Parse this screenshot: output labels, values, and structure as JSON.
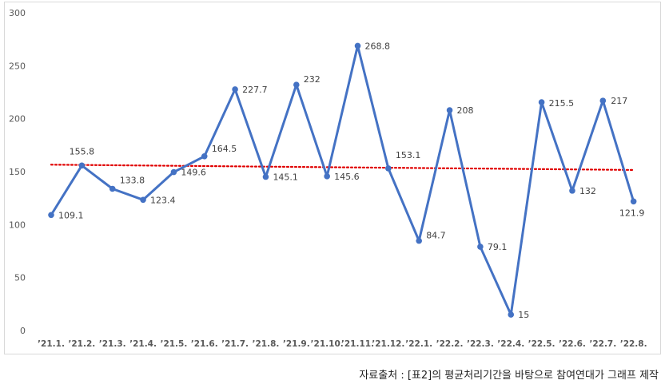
{
  "chart_data": {
    "type": "line",
    "categories": [
      "'21.1.",
      "'21.2.",
      "'21.3.",
      "'21.4.",
      "'21.5.",
      "'21.6.",
      "'21.7.",
      "'21.8.",
      "'21.9.",
      "'21.10.",
      "'21.11.",
      "'21.12.",
      "'22.1.",
      "'22.2.",
      "'22.3.",
      "'22.4.",
      "'22.5.",
      "'22.6.",
      "'22.7.",
      "'22.8."
    ],
    "series": [
      {
        "values": [
          109.1,
          155.8,
          133.8,
          123.4,
          149.6,
          164.5,
          227.7,
          145.1,
          232,
          145.6,
          268.8,
          153.1,
          84.7,
          208,
          79.1,
          15,
          215.5,
          132,
          217,
          121.9
        ],
        "labels": [
          "109.1",
          "155.8",
          "133.8",
          "123.4",
          "149.6",
          "164.5",
          "227.7",
          "145.1",
          "232",
          "145.6",
          "268.8",
          "153.1",
          "84.7",
          "208",
          "79.1",
          "15",
          "215.5",
          "132",
          "217",
          "121.9"
        ],
        "color": "#4472c4"
      }
    ],
    "trendline": {
      "style": "dotted",
      "color": "#e00000"
    },
    "y_ticks": [
      "0",
      "50",
      "100",
      "150",
      "200",
      "250",
      "300"
    ],
    "ylim": [
      0,
      300
    ],
    "grid": false,
    "legend": "none"
  },
  "source_note": "자료출처 : [표2]의 평균처리기간을 바탕으로 참여연대가 그래프 제작"
}
